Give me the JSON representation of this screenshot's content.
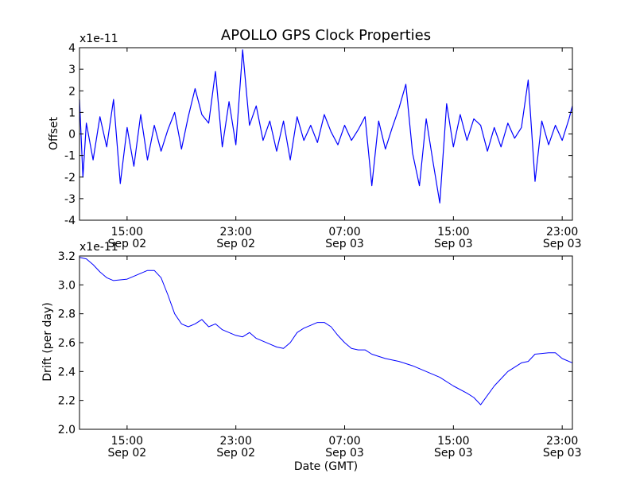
{
  "title": "APOLLO GPS Clock Properties",
  "colors": {
    "line": "#0000ff",
    "axes": "#000000",
    "background": "#ffffff"
  },
  "chart_data": [
    {
      "type": "line",
      "ylabel": "Offset",
      "exponent_label": "x1e-11",
      "xlim": [
        "Sep 02 11:30",
        "Sep 03 23:45"
      ],
      "ylim": [
        -4,
        4
      ],
      "yticks": [
        "-4",
        "-3",
        "-2",
        "-1",
        "0",
        "1",
        "2",
        "3",
        "4"
      ],
      "xticks": [
        {
          "time": "15:00",
          "date": "Sep 02"
        },
        {
          "time": "23:00",
          "date": "Sep 02"
        },
        {
          "time": "07:00",
          "date": "Sep 03"
        },
        {
          "time": "15:00",
          "date": "Sep 03"
        },
        {
          "time": "23:00",
          "date": "Sep 03"
        }
      ],
      "grid": false,
      "legend": "none",
      "series": [
        {
          "x": [
            "Sep 02 11:30",
            "Sep 02 11:45",
            "Sep 02 12:00",
            "Sep 02 12:30",
            "Sep 02 13:00",
            "Sep 02 13:30",
            "Sep 02 14:00",
            "Sep 02 14:30",
            "Sep 02 15:00",
            "Sep 02 15:30",
            "Sep 02 16:00",
            "Sep 02 16:30",
            "Sep 02 17:00",
            "Sep 02 17:30",
            "Sep 02 18:00",
            "Sep 02 18:30",
            "Sep 02 19:00",
            "Sep 02 19:30",
            "Sep 02 20:00",
            "Sep 02 20:30",
            "Sep 02 21:00",
            "Sep 02 21:30",
            "Sep 02 22:00",
            "Sep 02 22:30",
            "Sep 02 23:00",
            "Sep 02 23:30",
            "Sep 03 00:00",
            "Sep 03 00:30",
            "Sep 03 01:00",
            "Sep 03 01:30",
            "Sep 03 02:00",
            "Sep 03 02:30",
            "Sep 03 03:00",
            "Sep 03 03:30",
            "Sep 03 04:00",
            "Sep 03 04:30",
            "Sep 03 05:00",
            "Sep 03 05:30",
            "Sep 03 06:00",
            "Sep 03 06:30",
            "Sep 03 07:00",
            "Sep 03 07:30",
            "Sep 03 08:00",
            "Sep 03 08:30",
            "Sep 03 09:00",
            "Sep 03 09:30",
            "Sep 03 10:00",
            "Sep 03 10:30",
            "Sep 03 11:00",
            "Sep 03 11:30",
            "Sep 03 12:00",
            "Sep 03 12:30",
            "Sep 03 13:00",
            "Sep 03 13:30",
            "Sep 03 14:00",
            "Sep 03 14:30",
            "Sep 03 15:00",
            "Sep 03 15:30",
            "Sep 03 16:00",
            "Sep 03 16:30",
            "Sep 03 17:00",
            "Sep 03 17:30",
            "Sep 03 18:00",
            "Sep 03 18:30",
            "Sep 03 19:00",
            "Sep 03 19:30",
            "Sep 03 20:00",
            "Sep 03 20:30",
            "Sep 03 21:00",
            "Sep 03 21:30",
            "Sep 03 22:00",
            "Sep 03 22:30",
            "Sep 03 23:00",
            "Sep 03 23:30",
            "Sep 03 23:45"
          ],
          "y": [
            1.6,
            -2.0,
            0.5,
            -1.2,
            0.8,
            -0.6,
            1.6,
            -2.3,
            0.3,
            -1.5,
            0.9,
            -1.2,
            0.4,
            -0.8,
            0.2,
            1.0,
            -0.7,
            0.8,
            2.1,
            0.9,
            0.5,
            2.9,
            -0.6,
            1.5,
            -0.5,
            3.9,
            0.4,
            1.3,
            -0.3,
            0.6,
            -0.8,
            0.6,
            -1.2,
            0.8,
            -0.3,
            0.4,
            -0.4,
            0.9,
            0.1,
            -0.5,
            0.4,
            -0.3,
            0.2,
            0.8,
            -2.4,
            0.6,
            -0.7,
            0.3,
            1.2,
            2.3,
            -0.9,
            -2.4,
            0.7,
            -1.3,
            -3.2,
            1.4,
            -0.6,
            0.9,
            -0.3,
            0.7,
            0.4,
            -0.8,
            0.3,
            -0.6,
            0.5,
            -0.2,
            0.3,
            2.5,
            -2.2,
            0.6,
            -0.5,
            0.4,
            -0.3,
            0.7,
            1.3
          ]
        }
      ]
    },
    {
      "type": "line",
      "ylabel": "Drift (per day)",
      "xlabel": "Date (GMT)",
      "exponent_label": "x1e-11",
      "xlim": [
        "Sep 02 11:30",
        "Sep 03 23:45"
      ],
      "ylim": [
        2.0,
        3.2
      ],
      "yticks": [
        "2.0",
        "2.2",
        "2.4",
        "2.6",
        "2.8",
        "3.0",
        "3.2"
      ],
      "xticks": [
        {
          "time": "15:00",
          "date": "Sep 02"
        },
        {
          "time": "23:00",
          "date": "Sep 02"
        },
        {
          "time": "07:00",
          "date": "Sep 03"
        },
        {
          "time": "15:00",
          "date": "Sep 03"
        },
        {
          "time": "23:00",
          "date": "Sep 03"
        }
      ],
      "grid": false,
      "legend": "none",
      "series": [
        {
          "x": [
            "Sep 02 11:30",
            "Sep 02 12:00",
            "Sep 02 12:30",
            "Sep 02 13:00",
            "Sep 02 13:30",
            "Sep 02 14:00",
            "Sep 02 15:00",
            "Sep 02 16:00",
            "Sep 02 16:30",
            "Sep 02 17:00",
            "Sep 02 17:30",
            "Sep 02 18:00",
            "Sep 02 18:30",
            "Sep 02 19:00",
            "Sep 02 19:30",
            "Sep 02 20:00",
            "Sep 02 20:30",
            "Sep 02 21:00",
            "Sep 02 21:30",
            "Sep 02 22:00",
            "Sep 02 22:30",
            "Sep 02 23:00",
            "Sep 02 23:30",
            "Sep 03 00:00",
            "Sep 03 00:30",
            "Sep 03 01:00",
            "Sep 03 01:30",
            "Sep 03 02:00",
            "Sep 03 02:30",
            "Sep 03 03:00",
            "Sep 03 03:30",
            "Sep 03 04:00",
            "Sep 03 04:30",
            "Sep 03 05:00",
            "Sep 03 05:30",
            "Sep 03 06:00",
            "Sep 03 06:30",
            "Sep 03 07:00",
            "Sep 03 07:30",
            "Sep 03 08:00",
            "Sep 03 08:30",
            "Sep 03 09:00",
            "Sep 03 10:00",
            "Sep 03 11:00",
            "Sep 03 12:00",
            "Sep 03 13:00",
            "Sep 03 14:00",
            "Sep 03 15:00",
            "Sep 03 16:00",
            "Sep 03 16:30",
            "Sep 03 17:00",
            "Sep 03 18:00",
            "Sep 03 19:00",
            "Sep 03 20:00",
            "Sep 03 20:30",
            "Sep 03 21:00",
            "Sep 03 22:00",
            "Sep 03 22:30",
            "Sep 03 23:00",
            "Sep 03 23:45"
          ],
          "y": [
            3.19,
            3.18,
            3.14,
            3.09,
            3.05,
            3.03,
            3.04,
            3.08,
            3.1,
            3.1,
            3.05,
            2.93,
            2.8,
            2.73,
            2.71,
            2.73,
            2.76,
            2.71,
            2.73,
            2.69,
            2.67,
            2.65,
            2.64,
            2.67,
            2.63,
            2.61,
            2.59,
            2.57,
            2.56,
            2.6,
            2.67,
            2.7,
            2.72,
            2.74,
            2.74,
            2.71,
            2.65,
            2.6,
            2.56,
            2.55,
            2.55,
            2.52,
            2.49,
            2.47,
            2.44,
            2.4,
            2.36,
            2.3,
            2.25,
            2.22,
            2.17,
            2.3,
            2.4,
            2.46,
            2.47,
            2.52,
            2.53,
            2.53,
            2.49,
            2.46
          ]
        }
      ]
    }
  ]
}
